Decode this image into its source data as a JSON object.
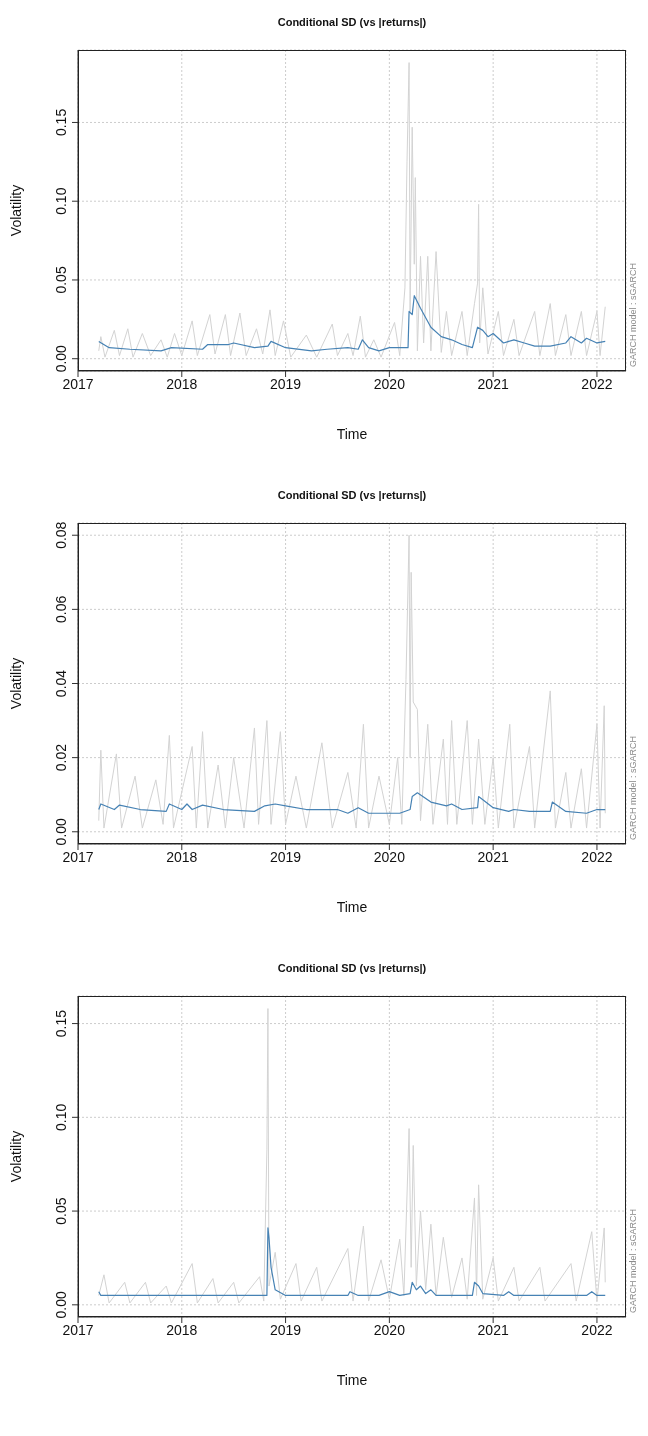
{
  "chart_data": [
    {
      "type": "line",
      "title": "Conditional SD (vs |returns|)",
      "xlabel": "Time",
      "ylabel": "Volatility",
      "annotations": [
        "GARCH model : sGARCH"
      ],
      "xlim": [
        2017.0,
        2022.28
      ],
      "xticks": [
        2017,
        2018,
        2019,
        2020,
        2021,
        2022
      ],
      "ylim": [
        -0.0078,
        0.196
      ],
      "yticks": [
        {
          "value": 0,
          "label": "0.00"
        },
        {
          "value": 0.05,
          "label": "0.05"
        },
        {
          "value": 0.1,
          "label": "0.10"
        },
        {
          "value": 0.15,
          "label": "0.15"
        }
      ],
      "grid": true,
      "line_style": "solid",
      "marker": "none",
      "series": [
        {
          "color": "#d3d3d3",
          "x": [
            2017.2,
            2017.22,
            2017.26,
            2017.35,
            2017.4,
            2017.48,
            2017.53,
            2017.62,
            2017.7,
            2017.8,
            2017.86,
            2017.93,
            2018.0,
            2018.1,
            2018.15,
            2018.27,
            2018.32,
            2018.42,
            2018.47,
            2018.56,
            2018.62,
            2018.72,
            2018.78,
            2018.85,
            2018.9,
            2018.98,
            2019.05,
            2019.2,
            2019.3,
            2019.45,
            2019.5,
            2019.6,
            2019.65,
            2019.72,
            2019.77,
            2019.85,
            2019.92,
            2020.05,
            2020.1,
            2020.15,
            2020.17,
            2020.19,
            2020.2,
            2020.22,
            2020.24,
            2020.25,
            2020.27,
            2020.3,
            2020.33,
            2020.37,
            2020.4,
            2020.45,
            2020.5,
            2020.55,
            2020.6,
            2020.7,
            2020.75,
            2020.82,
            2020.85,
            2020.86,
            2020.87,
            2020.9,
            2020.95,
            2021.05,
            2021.1,
            2021.2,
            2021.25,
            2021.4,
            2021.45,
            2021.55,
            2021.6,
            2021.7,
            2021.75,
            2021.85,
            2021.9,
            2022.0,
            2022.03,
            2022.08
          ],
          "values": [
            0.005,
            0.014,
            0.001,
            0.018,
            0.002,
            0.019,
            0.001,
            0.016,
            0.002,
            0.012,
            0.001,
            0.016,
            0.002,
            0.024,
            0.002,
            0.028,
            0.003,
            0.028,
            0.002,
            0.029,
            0.002,
            0.019,
            0.003,
            0.031,
            0.002,
            0.024,
            0.001,
            0.015,
            0.001,
            0.022,
            0.002,
            0.016,
            0.002,
            0.027,
            0.001,
            0.012,
            0.001,
            0.023,
            0.002,
            0.045,
            0.125,
            0.188,
            0.03,
            0.147,
            0.06,
            0.115,
            0.005,
            0.065,
            0.01,
            0.065,
            0.005,
            0.068,
            0.004,
            0.03,
            0.002,
            0.03,
            0.002,
            0.035,
            0.048,
            0.098,
            0.01,
            0.045,
            0.003,
            0.03,
            0.002,
            0.025,
            0.002,
            0.03,
            0.002,
            0.035,
            0.002,
            0.028,
            0.002,
            0.03,
            0.002,
            0.03,
            0.002,
            0.033
          ]
        },
        {
          "color": "#4682b4",
          "x": [
            2017.2,
            2017.3,
            2017.5,
            2017.8,
            2017.9,
            2018.2,
            2018.25,
            2018.45,
            2018.5,
            2018.7,
            2018.83,
            2018.86,
            2019.0,
            2019.25,
            2019.4,
            2019.6,
            2019.7,
            2019.74,
            2019.8,
            2019.9,
            2020.0,
            2020.18,
            2020.19,
            2020.22,
            2020.24,
            2020.3,
            2020.4,
            2020.5,
            2020.6,
            2020.7,
            2020.8,
            2020.85,
            2020.9,
            2020.95,
            2021.0,
            2021.1,
            2021.2,
            2021.3,
            2021.4,
            2021.55,
            2021.7,
            2021.75,
            2021.85,
            2021.9,
            2022.0,
            2022.08
          ],
          "values": [
            0.011,
            0.007,
            0.006,
            0.005,
            0.007,
            0.006,
            0.009,
            0.009,
            0.01,
            0.007,
            0.008,
            0.011,
            0.007,
            0.005,
            0.006,
            0.007,
            0.006,
            0.012,
            0.007,
            0.005,
            0.007,
            0.007,
            0.03,
            0.028,
            0.04,
            0.032,
            0.02,
            0.014,
            0.012,
            0.009,
            0.007,
            0.02,
            0.018,
            0.014,
            0.016,
            0.01,
            0.012,
            0.01,
            0.008,
            0.008,
            0.01,
            0.014,
            0.01,
            0.013,
            0.01,
            0.011
          ]
        }
      ]
    },
    {
      "type": "line",
      "title": "Conditional SD (vs |returns|)",
      "xlabel": "Time",
      "ylabel": "Volatility",
      "annotations": [
        "GARCH model : sGARCH"
      ],
      "xlim": [
        2017.0,
        2022.28
      ],
      "xticks": [
        2017,
        2018,
        2019,
        2020,
        2021,
        2022
      ],
      "ylim": [
        -0.0033,
        0.0833
      ],
      "yticks": [
        {
          "value": 0,
          "label": "0.00"
        },
        {
          "value": 0.02,
          "label": "0.02"
        },
        {
          "value": 0.04,
          "label": "0.04"
        },
        {
          "value": 0.06,
          "label": "0.06"
        },
        {
          "value": 0.08,
          "label": "0.08"
        }
      ],
      "grid": true,
      "line_style": "solid",
      "marker": "none",
      "series": [
        {
          "color": "#d3d3d3",
          "x": [
            2017.2,
            2017.22,
            2017.25,
            2017.37,
            2017.42,
            2017.55,
            2017.62,
            2017.75,
            2017.82,
            2017.88,
            2017.92,
            2018.1,
            2018.14,
            2018.2,
            2018.25,
            2018.35,
            2018.42,
            2018.5,
            2018.6,
            2018.7,
            2018.74,
            2018.82,
            2018.86,
            2018.95,
            2019.0,
            2019.1,
            2019.2,
            2019.35,
            2019.45,
            2019.6,
            2019.68,
            2019.75,
            2019.8,
            2019.9,
            2020.0,
            2020.08,
            2020.12,
            2020.16,
            2020.19,
            2020.2,
            2020.21,
            2020.23,
            2020.27,
            2020.3,
            2020.37,
            2020.42,
            2020.52,
            2020.56,
            2020.6,
            2020.65,
            2020.75,
            2020.8,
            2020.86,
            2020.92,
            2021.0,
            2021.05,
            2021.16,
            2021.2,
            2021.35,
            2021.4,
            2021.55,
            2021.6,
            2021.7,
            2021.75,
            2021.85,
            2021.9,
            2022.0,
            2022.03,
            2022.07,
            2022.08
          ],
          "values": [
            0.003,
            0.022,
            0.001,
            0.021,
            0.001,
            0.015,
            0.001,
            0.014,
            0.002,
            0.026,
            0.001,
            0.023,
            0.001,
            0.027,
            0.001,
            0.018,
            0.001,
            0.02,
            0.001,
            0.028,
            0.002,
            0.03,
            0.002,
            0.027,
            0.002,
            0.015,
            0.001,
            0.024,
            0.001,
            0.016,
            0.001,
            0.029,
            0.001,
            0.015,
            0.002,
            0.02,
            0.002,
            0.041,
            0.08,
            0.02,
            0.07,
            0.035,
            0.033,
            0.003,
            0.029,
            0.002,
            0.025,
            0.002,
            0.03,
            0.002,
            0.03,
            0.002,
            0.025,
            0.002,
            0.02,
            0.001,
            0.029,
            0.001,
            0.023,
            0.001,
            0.038,
            0.001,
            0.016,
            0.001,
            0.017,
            0.001,
            0.029,
            0.001,
            0.034,
            0.005
          ]
        },
        {
          "color": "#4682b4",
          "x": [
            2017.2,
            2017.22,
            2017.35,
            2017.4,
            2017.6,
            2017.85,
            2017.88,
            2018.0,
            2018.05,
            2018.1,
            2018.2,
            2018.4,
            2018.7,
            2018.8,
            2018.9,
            2019.0,
            2019.2,
            2019.5,
            2019.6,
            2019.7,
            2019.8,
            2020.1,
            2020.2,
            2020.22,
            2020.27,
            2020.4,
            2020.55,
            2020.6,
            2020.7,
            2020.85,
            2020.86,
            2021.0,
            2021.15,
            2021.2,
            2021.35,
            2021.55,
            2021.57,
            2021.7,
            2021.9,
            2022.0,
            2022.08
          ],
          "values": [
            0.006,
            0.0075,
            0.006,
            0.0072,
            0.006,
            0.0055,
            0.0075,
            0.006,
            0.0075,
            0.006,
            0.0072,
            0.006,
            0.0055,
            0.007,
            0.0075,
            0.007,
            0.006,
            0.006,
            0.005,
            0.0065,
            0.005,
            0.005,
            0.006,
            0.0095,
            0.0105,
            0.008,
            0.007,
            0.0075,
            0.006,
            0.0065,
            0.0095,
            0.0065,
            0.0055,
            0.006,
            0.0055,
            0.0055,
            0.008,
            0.0055,
            0.005,
            0.006,
            0.006
          ]
        }
      ]
    },
    {
      "type": "line",
      "title": "Conditional SD (vs |returns|)",
      "xlabel": "Time",
      "ylabel": "Volatility",
      "annotations": [
        "GARCH model : sGARCH"
      ],
      "xlim": [
        2017.0,
        2022.28
      ],
      "xticks": [
        2017,
        2018,
        2019,
        2020,
        2021,
        2022
      ],
      "ylim": [
        -0.0065,
        0.1647
      ],
      "yticks": [
        {
          "value": 0,
          "label": "0.00"
        },
        {
          "value": 0.05,
          "label": "0.05"
        },
        {
          "value": 0.1,
          "label": "0.10"
        },
        {
          "value": 0.15,
          "label": "0.15"
        }
      ],
      "grid": true,
      "line_style": "solid",
      "marker": "none",
      "series": [
        {
          "color": "#d3d3d3",
          "x": [
            2017.2,
            2017.25,
            2017.3,
            2017.45,
            2017.5,
            2017.65,
            2017.7,
            2017.85,
            2017.9,
            2018.1,
            2018.15,
            2018.3,
            2018.35,
            2018.5,
            2018.55,
            2018.75,
            2018.79,
            2018.82,
            2018.83,
            2018.84,
            2018.9,
            2018.95,
            2019.1,
            2019.15,
            2019.3,
            2019.35,
            2019.6,
            2019.65,
            2019.75,
            2019.8,
            2019.92,
            2020.0,
            2020.1,
            2020.14,
            2020.19,
            2020.21,
            2020.23,
            2020.26,
            2020.3,
            2020.35,
            2020.4,
            2020.45,
            2020.52,
            2020.6,
            2020.7,
            2020.75,
            2020.82,
            2020.84,
            2020.86,
            2020.9,
            2021.0,
            2021.05,
            2021.2,
            2021.25,
            2021.45,
            2021.5,
            2021.75,
            2021.8,
            2021.95,
            2022.0,
            2022.07,
            2022.08
          ],
          "values": [
            0.005,
            0.016,
            0.001,
            0.012,
            0.001,
            0.012,
            0.001,
            0.01,
            0.001,
            0.022,
            0.001,
            0.014,
            0.001,
            0.012,
            0.001,
            0.015,
            0.002,
            0.083,
            0.158,
            0.01,
            0.028,
            0.003,
            0.022,
            0.002,
            0.02,
            0.002,
            0.03,
            0.002,
            0.042,
            0.002,
            0.024,
            0.003,
            0.035,
            0.005,
            0.094,
            0.02,
            0.085,
            0.01,
            0.05,
            0.008,
            0.043,
            0.005,
            0.036,
            0.004,
            0.025,
            0.003,
            0.057,
            0.005,
            0.064,
            0.003,
            0.025,
            0.002,
            0.02,
            0.002,
            0.02,
            0.002,
            0.022,
            0.002,
            0.039,
            0.002,
            0.041,
            0.012
          ]
        },
        {
          "color": "#4682b4",
          "x": [
            2017.2,
            2017.22,
            2017.5,
            2018.0,
            2018.5,
            2018.82,
            2018.83,
            2018.84,
            2018.86,
            2018.9,
            2019.0,
            2019.3,
            2019.6,
            2019.62,
            2019.7,
            2019.9,
            2020.0,
            2020.1,
            2020.2,
            2020.22,
            2020.26,
            2020.3,
            2020.35,
            2020.4,
            2020.45,
            2020.8,
            2020.82,
            2020.86,
            2020.9,
            2021.1,
            2021.15,
            2021.2,
            2021.5,
            2021.9,
            2021.95,
            2022.0,
            2022.08
          ],
          "values": [
            0.007,
            0.005,
            0.005,
            0.005,
            0.005,
            0.005,
            0.041,
            0.036,
            0.02,
            0.008,
            0.005,
            0.005,
            0.005,
            0.007,
            0.005,
            0.005,
            0.007,
            0.005,
            0.006,
            0.012,
            0.008,
            0.01,
            0.006,
            0.008,
            0.005,
            0.005,
            0.012,
            0.01,
            0.006,
            0.005,
            0.007,
            0.005,
            0.005,
            0.005,
            0.007,
            0.005,
            0.005
          ]
        }
      ]
    }
  ]
}
